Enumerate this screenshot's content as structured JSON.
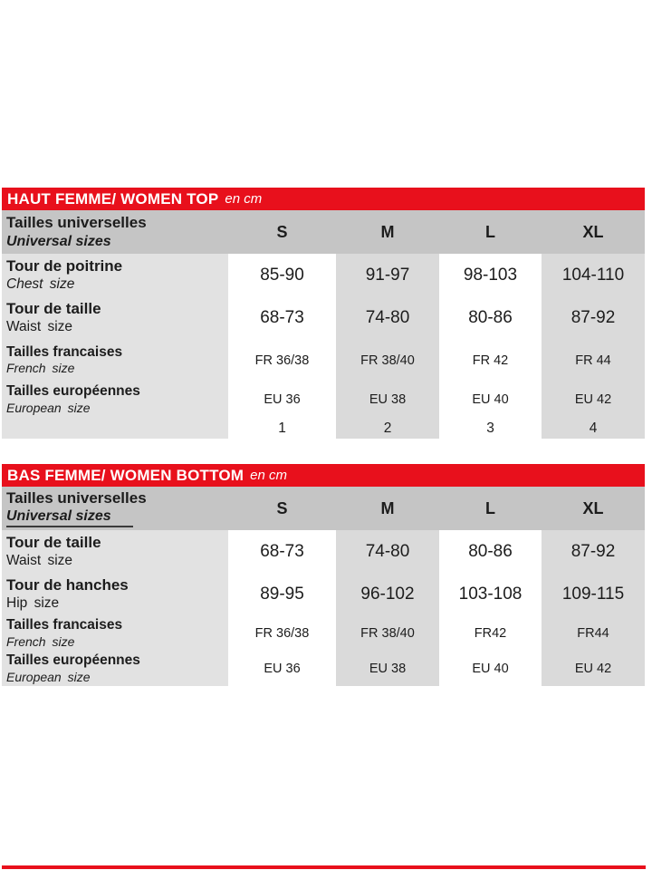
{
  "colors": {
    "accent_red": "#e8101c",
    "header_band_gray": "#c5c5c5",
    "label_column_gray": "#e2e2e2",
    "column_stripe_gray": "#dadada",
    "text": "#1c1c1c"
  },
  "tables": [
    {
      "title": "HAUT FEMME/ WOMEN TOP",
      "unit": "en cm",
      "header": {
        "label_fr": "Tailles universelles",
        "label_en": "Universal sizes",
        "columns": [
          "S",
          "M",
          "L",
          "XL"
        ]
      },
      "rows": [
        {
          "fr": "Tour de poitrine",
          "en": "Chest size",
          "values": [
            "85-90",
            "91-97",
            "98-103",
            "104-110"
          ]
        },
        {
          "fr": "Tour de taille",
          "en": "Waist size",
          "values": [
            "68-73",
            "74-80",
            "80-86",
            "87-92"
          ]
        },
        {
          "fr": "Tailles francaises",
          "en": "French size",
          "values": [
            "FR 36/38",
            "FR 38/40",
            "FR 42",
            "FR 44"
          ]
        },
        {
          "fr": "Tailles européennes",
          "en": "European size",
          "values": [
            "EU 36",
            "EU 38",
            "EU 40",
            "EU 42"
          ]
        }
      ],
      "footer_values": [
        "1",
        "2",
        "3",
        "4"
      ]
    },
    {
      "title": "BAS FEMME/ WOMEN BOTTOM",
      "unit": "en cm",
      "header": {
        "label_fr": "Tailles universelles",
        "label_en": "Universal sizes",
        "columns": [
          "S",
          "M",
          "L",
          "XL"
        ]
      },
      "rows": [
        {
          "fr": "Tour de taille",
          "en": "Waist size",
          "values": [
            "68-73",
            "74-80",
            "80-86",
            "87-92"
          ]
        },
        {
          "fr": "Tour de hanches",
          "en": "Hip size",
          "values": [
            "89-95",
            "96-102",
            "103-108",
            "109-115"
          ]
        },
        {
          "fr": "Tailles francaises",
          "en": "French size",
          "values": [
            "FR 36/38",
            "FR 38/40",
            "FR42",
            "FR44"
          ]
        },
        {
          "fr": "Tailles européennes",
          "en": "European size",
          "values": [
            "EU 36",
            "EU 38",
            "EU 40",
            "EU 42"
          ]
        }
      ]
    }
  ]
}
